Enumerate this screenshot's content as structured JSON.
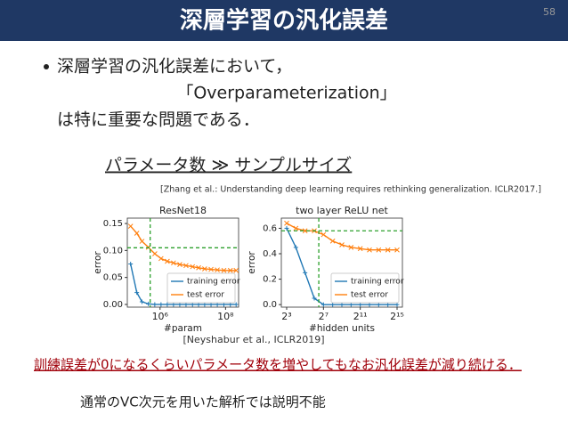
{
  "slide": {
    "title": "深層学習の汎化誤差",
    "page_number": "58",
    "bullet": "深層学習の汎化誤差において，",
    "term": "「Overparameterization」",
    "continuation": "は特に重要な問題である．",
    "claim": "パラメータ数 ≫ サンプルサイズ",
    "citation_top": "[Zhang et al.: Understanding deep learning requires rethinking generalization. ICLR2017.]",
    "citation_bottom": "[Neyshabur  et al., ICLR2019]",
    "highlight": "訓練誤差が0になるくらいパラメータ数を増やしてもなお汎化誤差が減り続ける．",
    "conclusion": "通常のVC次元を用いた解析では説明不能"
  },
  "chart_data": [
    {
      "type": "line",
      "title": "ResNet18",
      "xlabel": "#param",
      "ylabel": "error",
      "xscale": "log",
      "x": [
        126000,
        195000,
        280000,
        440000,
        690000,
        1070000,
        1660000,
        2570000,
        4000000,
        6200000,
        9800000,
        15000000,
        23000000,
        36000000,
        56000000,
        89000000,
        140000000,
        210000000
      ],
      "series": [
        {
          "name": "training error",
          "color": "#1f77b4",
          "marker": "plus",
          "values": [
            0.075,
            0.022,
            0.005,
            0.001,
            0,
            0,
            0,
            0,
            0,
            0,
            0,
            0,
            0,
            0,
            0,
            0,
            0,
            0
          ]
        },
        {
          "name": "test error",
          "color": "#ff7f0e",
          "marker": "cross",
          "values": [
            0.145,
            0.132,
            0.117,
            0.106,
            0.094,
            0.085,
            0.08,
            0.077,
            0.074,
            0.072,
            0.07,
            0.068,
            0.066,
            0.065,
            0.064,
            0.063,
            0.063,
            0.063
          ]
        }
      ],
      "ref_x": 500000,
      "ref_y": 0.105,
      "ref_color": "#2ca02c",
      "xlim": [
        100000,
        250000000
      ],
      "xticks": [
        {
          "value": 1000000,
          "label": "10⁶"
        },
        {
          "value": 100000000,
          "label": "10⁸"
        }
      ],
      "ylim": [
        -0.005,
        0.16
      ],
      "yticks": [
        {
          "value": 0,
          "label": "0.00"
        },
        {
          "value": 0.05,
          "label": "0.05"
        },
        {
          "value": 0.1,
          "label": "0.10"
        },
        {
          "value": 0.15,
          "label": "0.15"
        }
      ]
    },
    {
      "type": "line",
      "title": "two layer ReLU net",
      "xlabel": "#hidden units",
      "ylabel": "error",
      "xscale": "log",
      "x": [
        8,
        16,
        32,
        64,
        128,
        256,
        512,
        1024,
        2048,
        4096,
        8192,
        16384,
        32768
      ],
      "series": [
        {
          "name": "training error",
          "color": "#1f77b4",
          "marker": "plus",
          "values": [
            0.6,
            0.45,
            0.25,
            0.05,
            0,
            0,
            0,
            0,
            0,
            0,
            0,
            0,
            0
          ]
        },
        {
          "name": "test error",
          "color": "#ff7f0e",
          "marker": "cross",
          "values": [
            0.64,
            0.6,
            0.58,
            0.58,
            0.55,
            0.5,
            0.47,
            0.45,
            0.44,
            0.43,
            0.43,
            0.43,
            0.43
          ]
        }
      ],
      "ref_x": 90,
      "ref_y": 0.58,
      "ref_color": "#2ca02c",
      "xlim": [
        5.35,
        49000
      ],
      "xticks": [
        {
          "value": 8,
          "label": "2³"
        },
        {
          "value": 128,
          "label": "2⁷"
        },
        {
          "value": 2048,
          "label": "2¹¹"
        },
        {
          "value": 32768,
          "label": "2¹⁵"
        }
      ],
      "ylim": [
        -0.02,
        0.68
      ],
      "yticks": [
        {
          "value": 0,
          "label": "0.0"
        },
        {
          "value": 0.2,
          "label": "0.2"
        },
        {
          "value": 0.4,
          "label": "0.4"
        },
        {
          "value": 0.6,
          "label": "0.6"
        }
      ]
    }
  ]
}
